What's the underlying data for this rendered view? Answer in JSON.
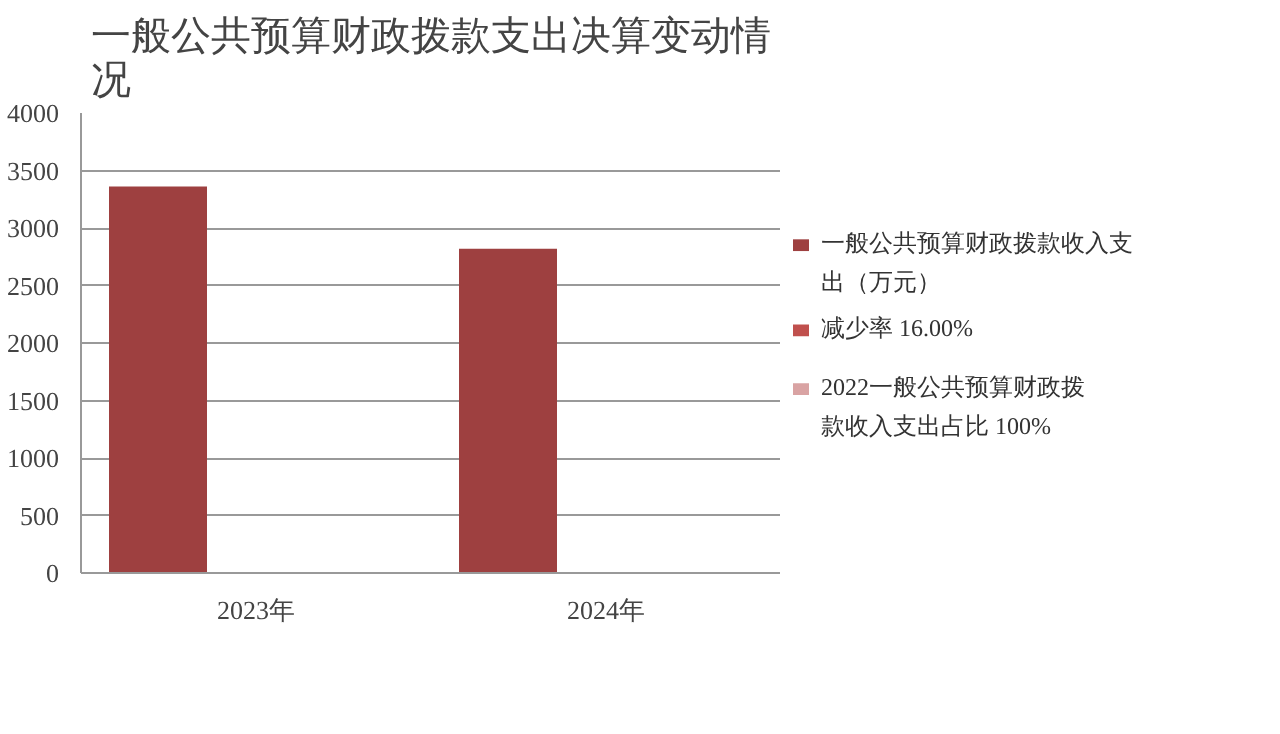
{
  "chart_data": {
    "type": "bar",
    "title": "一般公共预算财政拨款支出决算变动情况",
    "categories": [
      "2023年",
      "2024年"
    ],
    "series": [
      {
        "name": "一般公共预算财政拨款收入支出（万元）",
        "color": "#9e4040",
        "values": [
          3360,
          2820
        ]
      },
      {
        "name": "减少率 16.00%",
        "color": "#c0504d",
        "values": [
          null,
          null
        ]
      },
      {
        "name": "2022一般公共预算财政拨款收入支出占比 100%",
        "color": "#d9a3a3",
        "values": [
          null,
          null
        ]
      }
    ],
    "ylim": [
      0,
      4000
    ],
    "yticks": [
      0,
      500,
      1000,
      1500,
      2000,
      2500,
      3000,
      3500,
      4000
    ],
    "grid": "y",
    "legend": "right"
  }
}
